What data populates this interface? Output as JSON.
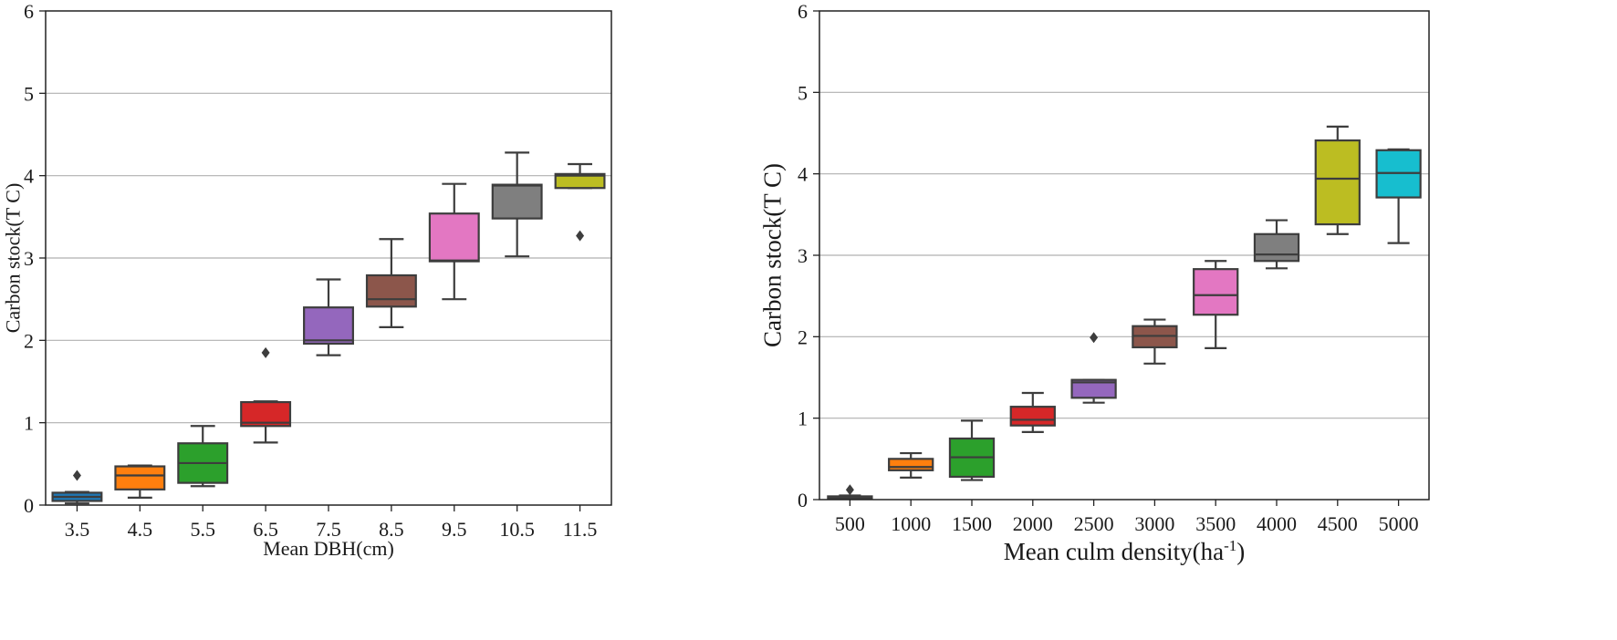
{
  "chart_data": [
    {
      "type": "box",
      "xlabel": "Mean DBH(cm)",
      "ylabel": "Carbon stock(T C)",
      "ylim": [
        0,
        6
      ],
      "yticks": [
        "0",
        "1",
        "2",
        "3",
        "4",
        "5",
        "6"
      ],
      "grid": "horizontal",
      "categories": [
        "3.5",
        "4.5",
        "5.5",
        "6.5",
        "7.5",
        "8.5",
        "9.5",
        "10.5",
        "11.5"
      ],
      "colors": [
        "#1f77b4",
        "#ff7f0e",
        "#2ca02c",
        "#d62728",
        "#9467bd",
        "#8c564b",
        "#e377c2",
        "#7f7f7f",
        "#bcbd22"
      ],
      "boxes": [
        {
          "min": 0.02,
          "q1": 0.05,
          "median": 0.1,
          "q3": 0.15,
          "max": 0.16,
          "outliers": [
            0.36
          ]
        },
        {
          "min": 0.09,
          "q1": 0.19,
          "median": 0.36,
          "q3": 0.47,
          "max": 0.48,
          "outliers": []
        },
        {
          "min": 0.23,
          "q1": 0.27,
          "median": 0.51,
          "q3": 0.75,
          "max": 0.96,
          "outliers": []
        },
        {
          "min": 0.76,
          "q1": 0.96,
          "median": 1.0,
          "q3": 1.25,
          "max": 1.26,
          "outliers": [
            1.85
          ]
        },
        {
          "min": 1.82,
          "q1": 1.96,
          "median": 2.0,
          "q3": 2.4,
          "max": 2.74,
          "outliers": []
        },
        {
          "min": 2.16,
          "q1": 2.41,
          "median": 2.5,
          "q3": 2.79,
          "max": 3.23,
          "outliers": []
        },
        {
          "min": 2.5,
          "q1": 2.96,
          "median": 2.97,
          "q3": 3.54,
          "max": 3.9,
          "outliers": []
        },
        {
          "min": 3.02,
          "q1": 3.48,
          "median": 3.88,
          "q3": 3.89,
          "max": 4.28,
          "outliers": []
        },
        {
          "min": 3.85,
          "q1": 3.85,
          "median": 4.0,
          "q3": 4.02,
          "max": 4.14,
          "outliers": [
            3.27
          ]
        }
      ]
    },
    {
      "type": "box",
      "xlabel": "Mean culm density(ha",
      "xlabel_sup": "-1",
      "xlabel_end": ")",
      "ylabel": "Carbon stock(T C)",
      "ylim": [
        0,
        6
      ],
      "yticks": [
        "0",
        "1",
        "2",
        "3",
        "4",
        "5",
        "6"
      ],
      "grid": "horizontal",
      "categories": [
        "500",
        "1000",
        "1500",
        "2000",
        "2500",
        "3000",
        "3500",
        "4000",
        "4500",
        "5000"
      ],
      "colors": [
        "#1f77b4",
        "#ff7f0e",
        "#2ca02c",
        "#d62728",
        "#9467bd",
        "#8c564b",
        "#e377c2",
        "#7f7f7f",
        "#bcbd22",
        "#17becf"
      ],
      "boxes": [
        {
          "min": 0.02,
          "q1": 0.02,
          "median": 0.03,
          "q3": 0.04,
          "max": 0.05,
          "outliers": [
            0.12
          ]
        },
        {
          "min": 0.27,
          "q1": 0.36,
          "median": 0.4,
          "q3": 0.5,
          "max": 0.57,
          "outliers": []
        },
        {
          "min": 0.24,
          "q1": 0.28,
          "median": 0.52,
          "q3": 0.75,
          "max": 0.97,
          "outliers": []
        },
        {
          "min": 0.83,
          "q1": 0.91,
          "median": 0.98,
          "q3": 1.14,
          "max": 1.31,
          "outliers": []
        },
        {
          "min": 1.19,
          "q1": 1.25,
          "median": 1.44,
          "q3": 1.47,
          "max": 1.47,
          "outliers": [
            1.99
          ]
        },
        {
          "min": 1.67,
          "q1": 1.87,
          "median": 2.01,
          "q3": 2.13,
          "max": 2.21,
          "outliers": []
        },
        {
          "min": 1.86,
          "q1": 2.27,
          "median": 2.51,
          "q3": 2.83,
          "max": 2.93,
          "outliers": []
        },
        {
          "min": 2.84,
          "q1": 2.93,
          "median": 3.01,
          "q3": 3.26,
          "max": 3.43,
          "outliers": []
        },
        {
          "min": 3.26,
          "q1": 3.38,
          "median": 3.94,
          "q3": 4.41,
          "max": 4.58,
          "outliers": []
        },
        {
          "min": 3.15,
          "q1": 3.71,
          "median": 4.01,
          "q3": 4.29,
          "max": 4.3,
          "outliers": []
        }
      ]
    }
  ]
}
